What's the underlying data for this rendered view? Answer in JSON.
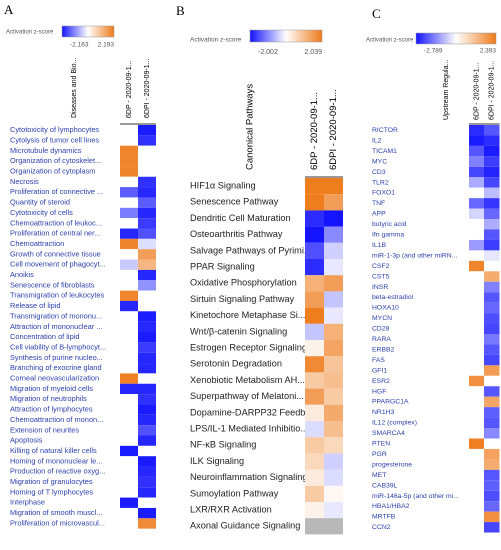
{
  "chart_data": [
    {
      "type": "heatmap",
      "panel": "A",
      "legend_title": "Activation z-score",
      "zlim": [
        -2.163,
        2.193
      ],
      "colors": [
        "#1414ff",
        "#ffffff",
        "#ee7a1a"
      ],
      "null_color": "#ffffff",
      "label_color": "#2b3fae",
      "row_header": "Diseases and Bio...",
      "categories": [
        "Cytotoxicity of lymphocytes",
        "Cytolysis of tumor cell lines",
        "Microtubule dynamics",
        "Organization of cytoskelet...",
        "Organization of cytoplasm",
        "Necrosis",
        "Proliferation of connective ...",
        "Quantity of steroid",
        "Cytotoxicity of cells",
        "Chemoattraction of leukoc...",
        "Proliferation of central ner...",
        "Chemoattraction",
        "Growth of connective tissue",
        "Cell movement of phagocyt...",
        "Anoikis",
        "Senescence of fibroblasts",
        "Transmigration of leukocytes",
        "Release of lipid",
        "Transmigration of mononu...",
        "Attraction of mononuclear ...",
        "Concentration of lipid",
        "Cell viability of B-lymphocyt...",
        "Synthesis of purine nucleo...",
        "Branching of exocrine gland",
        "Corneal neovascularization",
        "Migration of myeloid cells",
        "Migration of neutrophils",
        "Attraction of lymphocytes",
        "Chemoattraction of monon...",
        "Extension of neurites",
        "Apoptosis",
        "Killing of natural killer cells",
        "Homing of mononuclear le...",
        "Production of reactive oxyg...",
        "Migration of granulocytes",
        "Homing of T lymphocytes",
        "Interphase",
        "Migration of smooth muscl...",
        "Proliferation of microvascul..."
      ],
      "series": [
        {
          "name": "6DP - 2020-09-1...",
          "values": [
            null,
            null,
            2.0,
            2.0,
            2.0,
            null,
            -1.5,
            null,
            -1.2,
            null,
            -2.0,
            2.0,
            null,
            -0.5,
            null,
            null,
            2.0,
            -2.0,
            null,
            null,
            null,
            null,
            null,
            null,
            2.1,
            -2.0,
            null,
            null,
            null,
            null,
            null,
            -2.1,
            null,
            null,
            null,
            null,
            -2.1,
            null,
            null
          ]
        },
        {
          "name": "6DPI - 2020-09-1...",
          "values": [
            -2.1,
            -1.9,
            null,
            null,
            null,
            -1.9,
            -2.0,
            -1.5,
            -2.0,
            -1.8,
            -1.6,
            -0.3,
            1.6,
            1.2,
            -2.0,
            -1.0,
            null,
            null,
            -2.1,
            -2.0,
            -2.1,
            -1.8,
            -2.0,
            -2.0,
            null,
            -2.0,
            -1.9,
            -2.1,
            -2.0,
            -1.6,
            -2.0,
            null,
            -2.1,
            -2.0,
            -1.9,
            -2.0,
            null,
            -2.1,
            1.9
          ]
        }
      ]
    },
    {
      "type": "heatmap",
      "panel": "B",
      "legend_title": "Activation z-score",
      "zlim": [
        -2.002,
        2.039
      ],
      "colors": [
        "#1414ff",
        "#ffffff",
        "#ee7a1a"
      ],
      "null_color": "#b8b8b8",
      "label_color": "#222222",
      "row_header": "Canonical Pathways",
      "categories": [
        "HIF1α Signaling",
        "Senescence Pathway",
        "Dendritic Cell Maturation",
        "Osteoarthritis Pathway",
        "Salvage Pathways of Pyrimi...",
        "PPAR Signaling",
        "Oxidative Phosphorylation",
        "Sirtuin Signaling Pathway",
        "Kinetochore Metaphase Si...",
        "Wnt/β-catenin Signaling",
        "Estrogen Receptor Signaling",
        "Serotonin Degradation",
        "Xenobiotic Metabolism AH...",
        "Superpathway of Melatoni...",
        "Dopamine-DARPP32 Feedb...",
        "LPS/IL-1 Mediated Inhibitio...",
        "NF-κB Signaling",
        "ILK Signaling",
        "Neuroinflammation Signaling",
        "Sumoylation Pathway",
        "LXR/RXR Activation",
        "Axonal Guidance Signaling"
      ],
      "series": [
        {
          "name": "6DP - 2020-09-1...",
          "values": [
            2.0,
            2.0,
            -1.8,
            -2.0,
            -1.5,
            -1.8,
            1.2,
            1.5,
            2.0,
            -0.5,
            0.2,
            1.8,
            0.8,
            1.5,
            0.3,
            -0.3,
            0.8,
            0.6,
            0.3,
            0.8,
            0.2,
            null
          ]
        },
        {
          "name": "6DPI - 2020-09-1...",
          "values": [
            2.0,
            1.5,
            -2.0,
            -1.0,
            -0.4,
            -0.2,
            1.5,
            -0.5,
            -0.2,
            1.2,
            1.4,
            0.9,
            1.0,
            0.8,
            1.3,
            1.0,
            0.6,
            -0.4,
            -0.3,
            0.1,
            -0.2,
            null
          ]
        }
      ]
    },
    {
      "type": "heatmap",
      "panel": "C",
      "legend_title": "Activation z-score",
      "zlim": [
        -2.789,
        2.393
      ],
      "colors": [
        "#1414ff",
        "#ffffff",
        "#ee7a1a"
      ],
      "null_color": "#ffffff",
      "label_color": "#2b3fae",
      "row_header": "Upstream Regula...",
      "categories": [
        "RICTOR",
        "IL2",
        "TICAM1",
        "MYC",
        "CD3",
        "TLR2",
        "FOXO1",
        "TNF",
        "APP",
        "butyric acid",
        "Ifn gamma",
        "IL1B",
        "miR-1-3p (and other miRN...",
        "CSF2",
        "CST5",
        "INSR",
        "beta-estradiol",
        "HOXA10",
        "MYCN",
        "CD28",
        "RARA",
        "ERBB2",
        "FAS",
        "GFI1",
        "ESR2",
        "HGF",
        "PPARGC1A",
        "NR1H3",
        "IL12 (complex)",
        "SMARCA4",
        "PTEN",
        "PGR",
        "progesterone",
        "MET",
        "CAB39L",
        "miR-146a-5p (and other mi...",
        "HBA1/HBA2",
        "MRTFB",
        "CCN2"
      ],
      "series": [
        {
          "name": "6DP - 2020-09-1...",
          "values": [
            -2.5,
            -2.7,
            -2.0,
            -1.5,
            -2.2,
            -1.0,
            null,
            -1.8,
            -0.5,
            null,
            null,
            -1.2,
            null,
            2.2,
            null,
            null,
            null,
            null,
            null,
            null,
            null,
            null,
            null,
            null,
            2.0,
            null,
            null,
            null,
            null,
            null,
            2.3,
            null,
            null,
            null,
            null,
            null,
            null,
            null,
            null
          ]
        },
        {
          "name": "6DPI - 2020-09-1...",
          "values": [
            -2.0,
            -2.5,
            -2.7,
            -2.3,
            -2.6,
            -2.2,
            -0.8,
            -2.4,
            -1.8,
            -1.0,
            -2.0,
            -2.3,
            -0.3,
            null,
            1.5,
            -1.5,
            -2.0,
            -1.8,
            -2.1,
            -2.2,
            -1.6,
            -2.0,
            -2.2,
            1.8,
            null,
            -2.0,
            1.6,
            -1.9,
            -2.0,
            -1.4,
            null,
            1.7,
            1.5,
            -2.0,
            -1.9,
            -2.1,
            -1.8,
            2.0,
            -2.2
          ]
        }
      ]
    }
  ]
}
